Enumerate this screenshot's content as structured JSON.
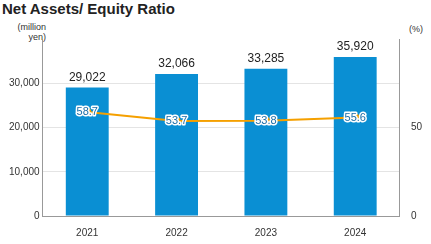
{
  "chart_data": {
    "type": "bar",
    "title": "Net Assets/ Equity Ratio",
    "y_label": "(million yen)",
    "y2_label": "(%)",
    "categories": [
      "2021",
      "2022",
      "2023",
      "2024"
    ],
    "series": [
      {
        "type": "bar",
        "color": "#0a8fd3",
        "values": [
          29022,
          32066,
          33285,
          35920
        ],
        "value_labels": [
          "29,022",
          "32,066",
          "33,285",
          "35,920"
        ]
      },
      {
        "type": "line",
        "axis": "y2",
        "color": "#f5a000",
        "marker": "circle",
        "line_style": "solid",
        "values": [
          58.7,
          53.7,
          53.8,
          55.6
        ]
      }
    ],
    "ylim": [
      0,
      40000
    ],
    "yticks": [
      0,
      {
        "value": 10000,
        "label": "10,000"
      },
      {
        "value": 20000,
        "label": "20,000"
      },
      {
        "value": 30000,
        "label": "30,000"
      }
    ],
    "y2lim": [
      0,
      100
    ],
    "y2ticks": [
      0,
      50
    ],
    "grid": true,
    "data_labels": true
  }
}
